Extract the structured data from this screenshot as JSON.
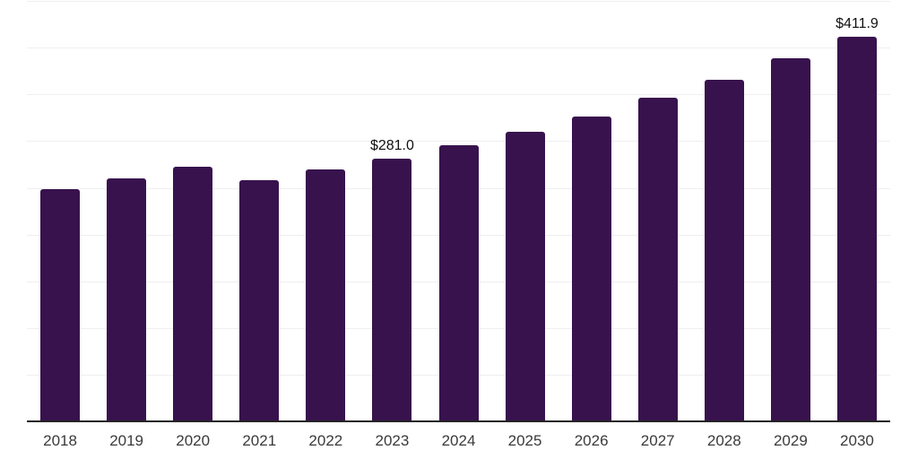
{
  "chart_data": {
    "type": "bar",
    "title": "",
    "xlabel": "",
    "ylabel": "",
    "categories": [
      "2018",
      "2019",
      "2020",
      "2021",
      "2022",
      "2023",
      "2024",
      "2025",
      "2026",
      "2027",
      "2028",
      "2029",
      "2030"
    ],
    "values": [
      248.8,
      260.0,
      272.9,
      258.4,
      270.0,
      281.0,
      295.3,
      309.7,
      326.3,
      346.1,
      365.6,
      388.7,
      411.9
    ],
    "data_labels": [
      {
        "category": "2023",
        "text": "$281.0"
      },
      {
        "category": "2030",
        "text": "$411.9"
      }
    ],
    "value_prefix": "$",
    "ylim": [
      0,
      450
    ],
    "gridline_step": 50,
    "grid": "horizontal",
    "y_tick_labels_visible": false,
    "legend_position": "none",
    "colors": {
      "bar": "#38124D",
      "axis_line": "#242424",
      "gridline": "#EFEFEF",
      "tick_label": "#3A3A3A",
      "data_label": "#111111",
      "background": "#FFFFFF"
    }
  }
}
